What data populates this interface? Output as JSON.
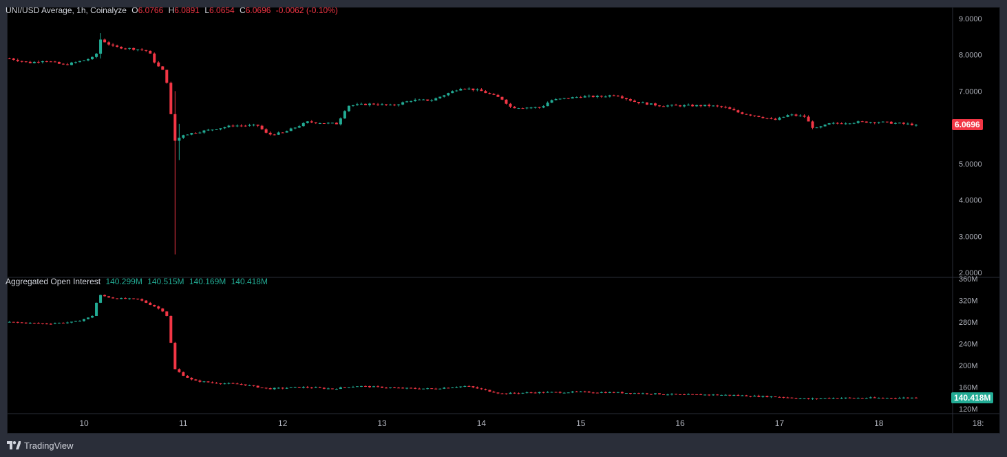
{
  "legend": {
    "symbol": "UNI/USD Average, 1h, Coinalyze",
    "o_label": "O",
    "o": "6.0766",
    "h_label": "H",
    "h": "6.0891",
    "l_label": "L",
    "l": "6.0654",
    "c_label": "C",
    "c": "6.0696",
    "change": "-0.0062 (-0.10%)"
  },
  "oi_legend": {
    "title": "Aggregated Open Interest",
    "values": [
      "140.299M",
      "140.515M",
      "140.169M",
      "140.418M"
    ]
  },
  "price_tag": "6.0696",
  "oi_tag": "140.418M",
  "brand": "TradingView",
  "colors": {
    "up": "#22ab94",
    "down": "#f23645",
    "background": "#000000",
    "axis_text": "#b2b5be"
  },
  "chart_data": [
    {
      "type": "candlestick",
      "title": "UNI/USD Average, 1h, Coinalyze",
      "ylim": [
        2.0,
        9.0
      ],
      "y_ticks": [
        "9.0000",
        "8.0000",
        "7.0000",
        "6.0000",
        "5.0000",
        "4.0000",
        "3.0000",
        "2.0000"
      ],
      "x_ticks": [
        "10",
        "11",
        "12",
        "13",
        "14",
        "15",
        "16",
        "17",
        "18",
        "18:"
      ],
      "x_tick_days": [
        10,
        11,
        12,
        13,
        14,
        15,
        16,
        17,
        18,
        19
      ],
      "x_range_days": [
        9.25,
        19.04
      ],
      "close_anchors": [
        [
          9.25,
          7.9
        ],
        [
          9.45,
          7.78
        ],
        [
          9.6,
          7.85
        ],
        [
          9.8,
          7.72
        ],
        [
          10.0,
          7.85
        ],
        [
          10.12,
          7.95
        ],
        [
          10.15,
          8.45
        ],
        [
          10.3,
          8.22
        ],
        [
          10.55,
          8.15
        ],
        [
          10.65,
          8.1
        ],
        [
          10.72,
          7.75
        ],
        [
          10.8,
          7.55
        ],
        [
          10.85,
          7.1
        ],
        [
          10.9,
          5.6
        ],
        [
          11.0,
          5.8
        ],
        [
          11.2,
          5.9
        ],
        [
          11.5,
          6.05
        ],
        [
          11.75,
          6.05
        ],
        [
          11.85,
          5.8
        ],
        [
          12.0,
          5.85
        ],
        [
          12.25,
          6.15
        ],
        [
          12.55,
          6.1
        ],
        [
          12.65,
          6.6
        ],
        [
          12.9,
          6.65
        ],
        [
          13.1,
          6.6
        ],
        [
          13.3,
          6.75
        ],
        [
          13.5,
          6.75
        ],
        [
          13.8,
          7.1
        ],
        [
          14.0,
          7.0
        ],
        [
          14.2,
          6.8
        ],
        [
          14.3,
          6.55
        ],
        [
          14.45,
          6.55
        ],
        [
          14.6,
          6.55
        ],
        [
          14.7,
          6.75
        ],
        [
          15.0,
          6.85
        ],
        [
          15.2,
          6.85
        ],
        [
          15.35,
          6.9
        ],
        [
          15.55,
          6.7
        ],
        [
          15.8,
          6.6
        ],
        [
          16.0,
          6.6
        ],
        [
          16.3,
          6.6
        ],
        [
          16.45,
          6.55
        ],
        [
          16.6,
          6.4
        ],
        [
          16.8,
          6.3
        ],
        [
          16.95,
          6.2
        ],
        [
          17.1,
          6.35
        ],
        [
          17.25,
          6.3
        ],
        [
          17.35,
          5.95
        ],
        [
          17.5,
          6.1
        ],
        [
          17.8,
          6.15
        ],
        [
          18.0,
          6.15
        ],
        [
          18.25,
          6.1
        ],
        [
          18.38,
          6.07
        ]
      ],
      "wick_events": [
        {
          "day": 10.15,
          "high": 8.6,
          "low": 7.9
        },
        {
          "day": 10.9,
          "high": 7.0,
          "low": 2.5
        },
        {
          "day": 10.95,
          "high": 6.1,
          "low": 5.1
        }
      ],
      "last_close": 6.0696
    },
    {
      "type": "candlestick",
      "title": "Aggregated Open Interest",
      "ylim": [
        120,
        360
      ],
      "y_ticks": [
        "360M",
        "320M",
        "280M",
        "240M",
        "200M",
        "160M",
        "120M"
      ],
      "close_anchors": [
        [
          9.25,
          280
        ],
        [
          9.6,
          277
        ],
        [
          9.9,
          280
        ],
        [
          10.08,
          290
        ],
        [
          10.15,
          330
        ],
        [
          10.3,
          324
        ],
        [
          10.55,
          322
        ],
        [
          10.7,
          310
        ],
        [
          10.8,
          300
        ],
        [
          10.85,
          288
        ],
        [
          10.9,
          195
        ],
        [
          11.0,
          182
        ],
        [
          11.1,
          172
        ],
        [
          11.3,
          168
        ],
        [
          11.6,
          165
        ],
        [
          11.85,
          157
        ],
        [
          12.2,
          160
        ],
        [
          12.5,
          157
        ],
        [
          12.75,
          162
        ],
        [
          13.2,
          158
        ],
        [
          13.5,
          157
        ],
        [
          13.85,
          162
        ],
        [
          14.2,
          148
        ],
        [
          14.5,
          150
        ],
        [
          15.0,
          151
        ],
        [
          15.35,
          150
        ],
        [
          15.7,
          148
        ],
        [
          16.0,
          146
        ],
        [
          16.3,
          146
        ],
        [
          16.55,
          145
        ],
        [
          16.8,
          143
        ],
        [
          17.0,
          142
        ],
        [
          17.3,
          138
        ],
        [
          17.5,
          140
        ],
        [
          18.0,
          140
        ],
        [
          18.38,
          140.418
        ]
      ],
      "last_close": 140.418
    }
  ]
}
